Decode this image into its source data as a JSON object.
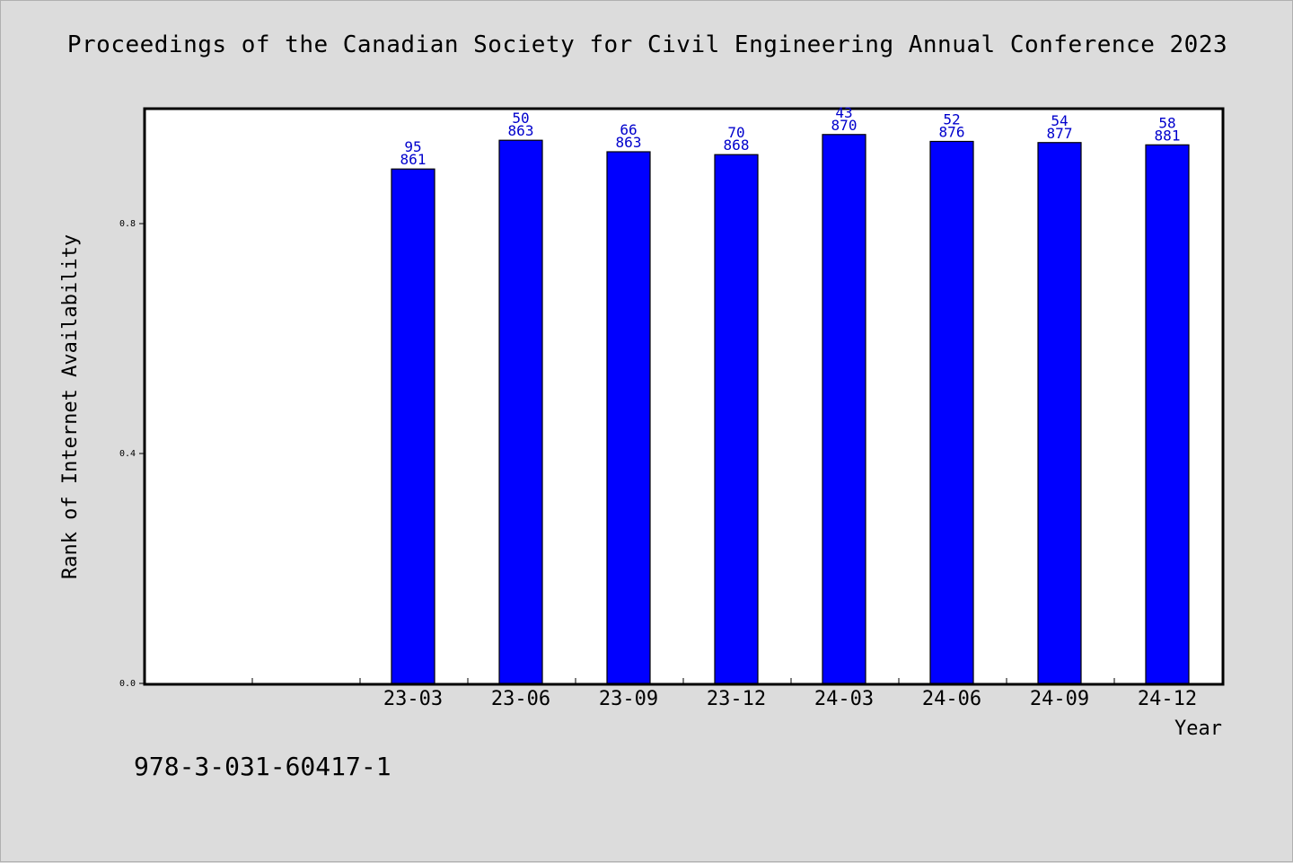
{
  "title": "Proceedings of the Canadian Society for Civil Engineering Annual Conference 2023",
  "footer_text": "978-3-031-60417-1",
  "chart_data": {
    "type": "bar",
    "xlabel": "Year",
    "ylabel": "Rank of Internet Availability",
    "ylim": [
      0.0,
      1.0
    ],
    "y_ticks": [
      "0.0",
      "0.4",
      "0.8"
    ],
    "grid": false,
    "categories": [
      "23-03",
      "23-06",
      "23-09",
      "23-12",
      "24-03",
      "24-06",
      "24-09",
      "24-12"
    ],
    "values": [
      0.895,
      0.945,
      0.925,
      0.92,
      0.955,
      0.943,
      0.941,
      0.937
    ],
    "label_top": [
      "95",
      "50",
      "66",
      "70",
      "43",
      "52",
      "54",
      "58"
    ],
    "label_bottom": [
      "861",
      "863",
      "863",
      "868",
      "870",
      "876",
      "877",
      "881"
    ],
    "bar_color": "#0000ff",
    "label_color": "#0000cc"
  }
}
